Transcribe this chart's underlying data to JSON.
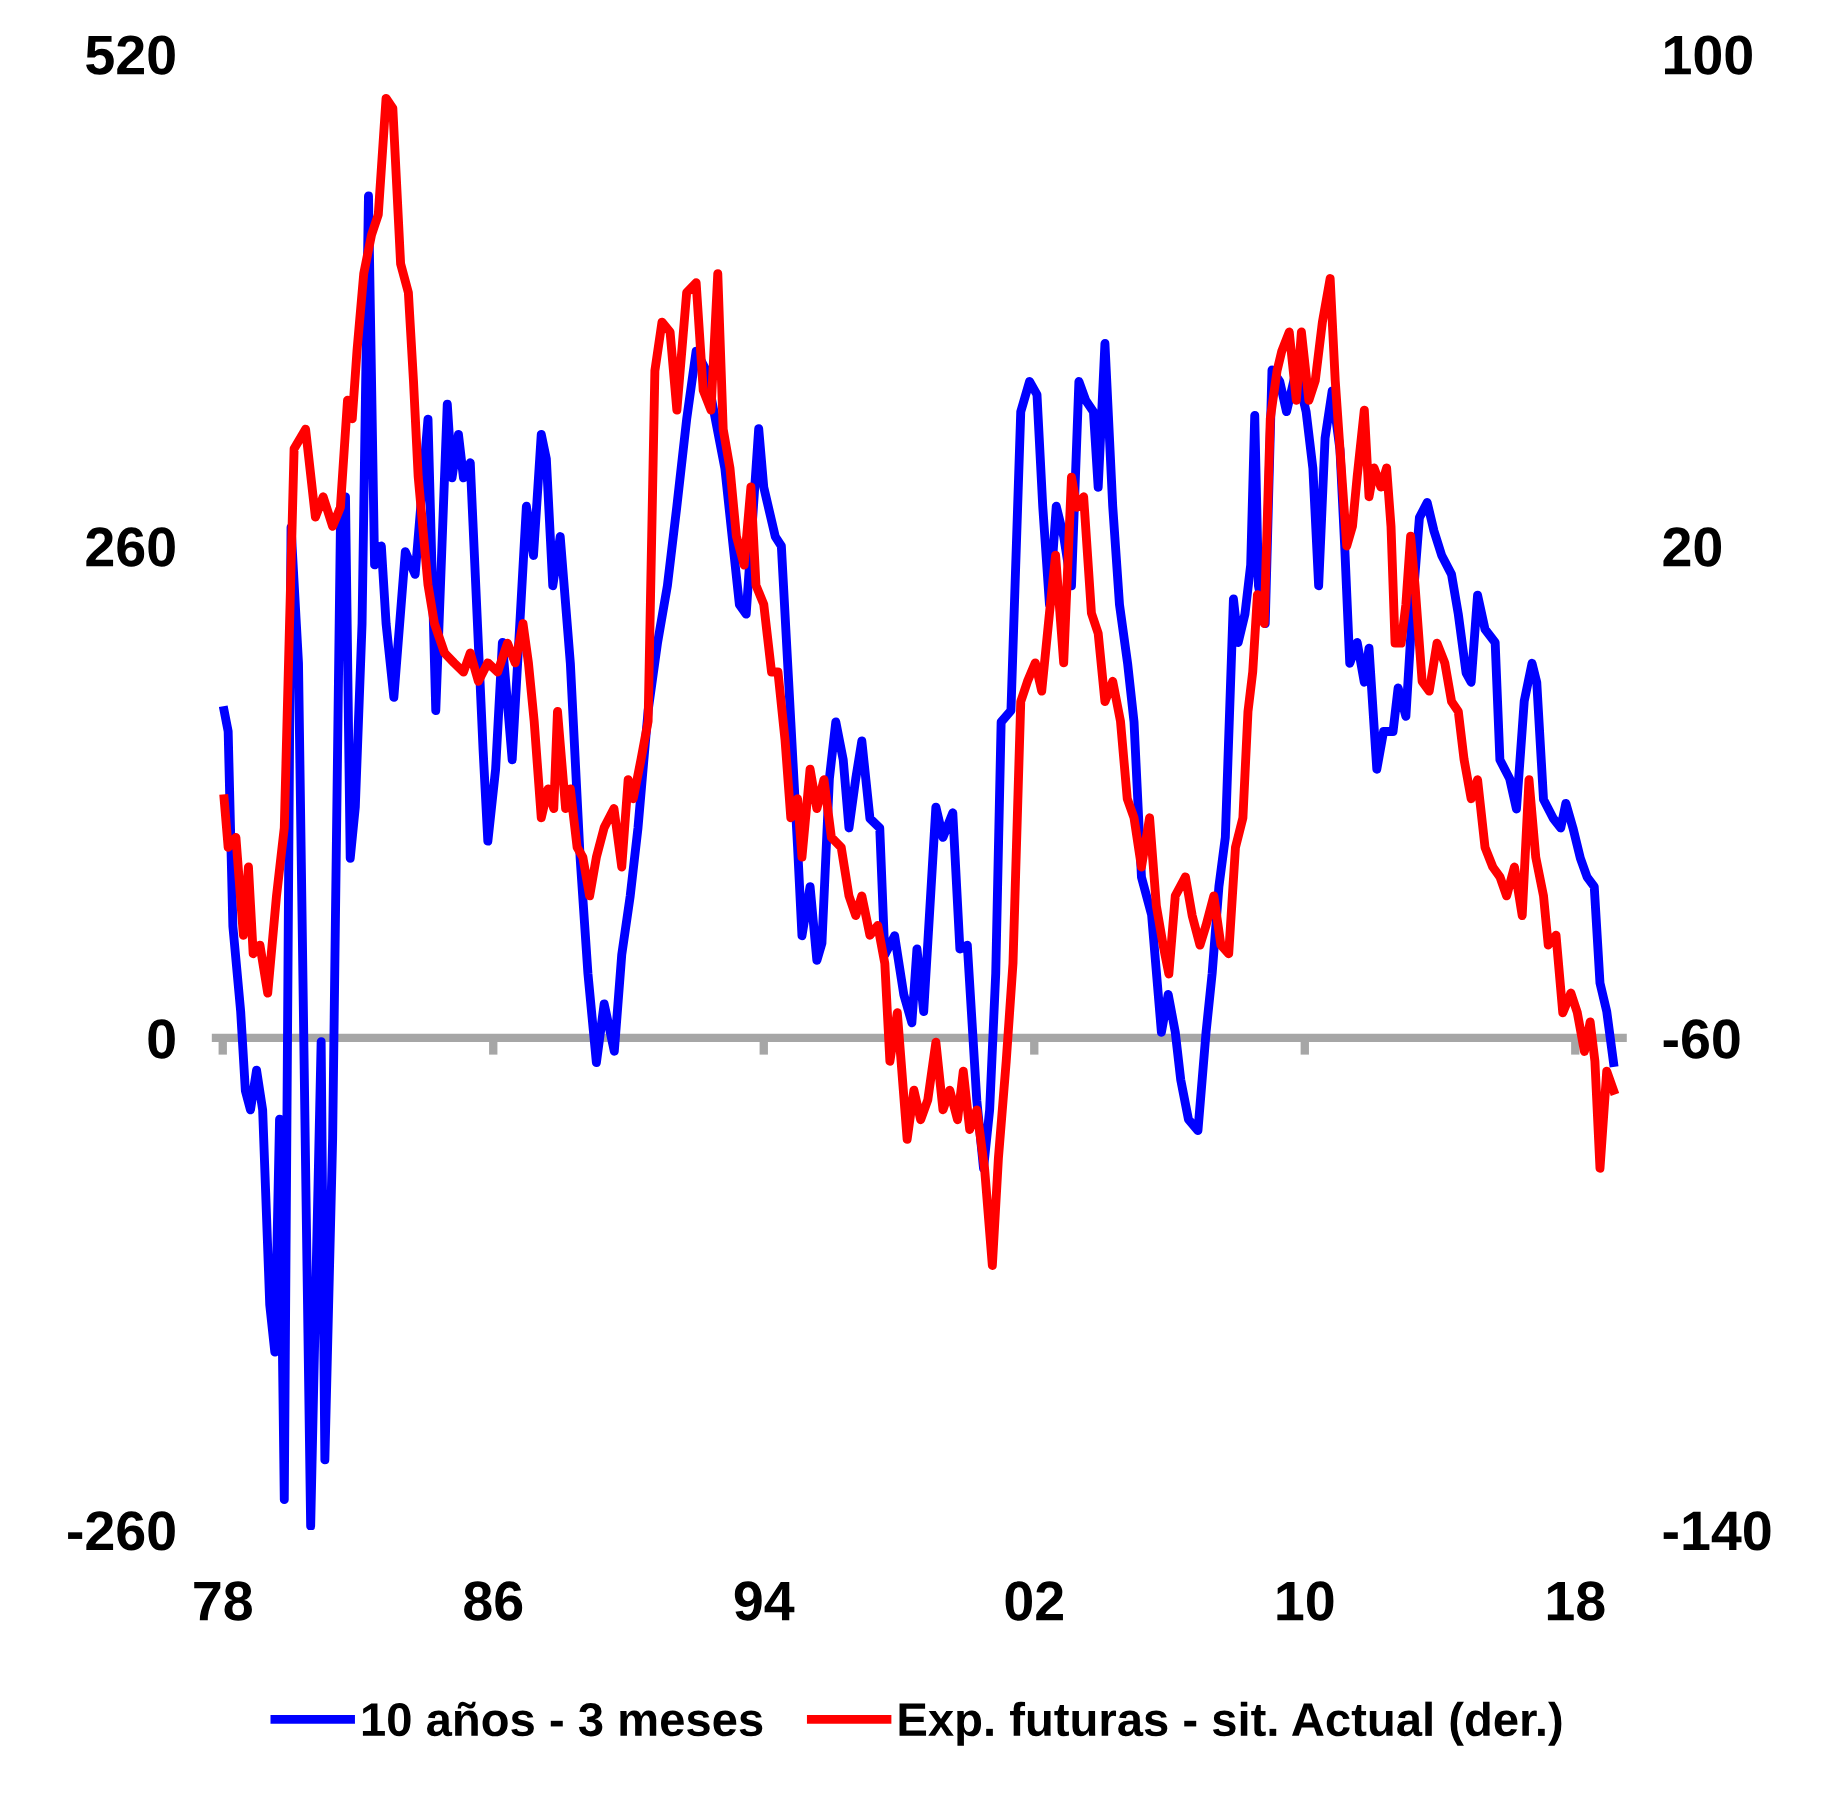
{
  "chart_data": {
    "type": "line",
    "xlim": [
      1977.8,
      2019.4
    ],
    "xticks": [
      {
        "value": 1978,
        "label": "78"
      },
      {
        "value": 1986,
        "label": "86"
      },
      {
        "value": 1994,
        "label": "94"
      },
      {
        "value": 2002,
        "label": "02"
      },
      {
        "value": 2010,
        "label": "10"
      },
      {
        "value": 2018,
        "label": "18"
      }
    ],
    "ylim": [
      -260,
      520
    ],
    "yticks": [
      -260,
      0,
      260,
      520
    ],
    "y2lim": [
      -140,
      100
    ],
    "y2ticks": [
      -140,
      -60,
      20,
      100
    ],
    "legend": "bottom",
    "series": [
      {
        "name": "10 años - 3 meses",
        "color": "#0000ff",
        "x": [
          1978.04,
          1978.16,
          1978.3,
          1978.53,
          1978.67,
          1978.82,
          1979.0,
          1979.18,
          1979.39,
          1979.54,
          1979.68,
          1979.82,
          1980.02,
          1980.24,
          1980.6,
          1980.91,
          1981.02,
          1981.25,
          1981.48,
          1981.63,
          1981.77,
          1981.92,
          1982.12,
          1982.31,
          1982.49,
          1982.69,
          1982.83,
          1983.06,
          1983.4,
          1983.69,
          1984.07,
          1984.3,
          1984.64,
          1984.78,
          1984.97,
          1985.12,
          1985.32,
          1985.7,
          1985.84,
          1986.07,
          1986.27,
          1986.56,
          1986.98,
          1987.19,
          1987.42,
          1987.57,
          1987.76,
          1987.98,
          1988.28,
          1988.57,
          1988.8,
          1989.05,
          1989.28,
          1989.58,
          1989.8,
          1990.05,
          1990.28,
          1990.58,
          1990.86,
          1991.15,
          1991.43,
          1991.72,
          1992.0,
          1992.29,
          1992.85,
          1993.28,
          1993.48,
          1993.85,
          1994.0,
          1994.34,
          1994.52,
          1994.8,
          1995.0,
          1995.13,
          1995.37,
          1995.57,
          1995.72,
          1995.94,
          1996.13,
          1996.35,
          1996.52,
          1996.72,
          1996.9,
          1997.14,
          1997.43,
          1997.58,
          1997.87,
          1998.14,
          1998.38,
          1998.53,
          1998.73,
          1999.09,
          1999.3,
          1999.59,
          1999.8,
          2000.02,
          2000.3,
          2000.5,
          2000.68,
          2000.86,
          2001.02,
          2001.31,
          2001.6,
          2001.86,
          2002.08,
          2002.25,
          2002.45,
          2002.65,
          2002.87,
          2003.1,
          2003.32,
          2003.52,
          2003.75,
          2003.89,
          2004.09,
          2004.32,
          2004.52,
          2004.76,
          2004.95,
          2005.17,
          2005.47,
          2005.76,
          2005.96,
          2006.17,
          2006.33,
          2006.56,
          2006.84,
          2007.08,
          2007.26,
          2007.46,
          2007.65,
          2007.89,
          2008.03,
          2008.23,
          2008.4,
          2008.52,
          2008.63,
          2008.83,
          2009.03,
          2009.26,
          2009.46,
          2009.75,
          2010.04,
          2010.24,
          2010.41,
          2010.6,
          2010.81,
          2011.04,
          2011.18,
          2011.33,
          2011.55,
          2011.76,
          2011.9,
          2012.13,
          2012.33,
          2012.61,
          2012.76,
          2012.99,
          2013.19,
          2013.39,
          2013.62,
          2013.82,
          2014.05,
          2014.34,
          2014.54,
          2014.77,
          2014.92,
          2015.11,
          2015.33,
          2015.63,
          2015.77,
          2016.06,
          2016.26,
          2016.49,
          2016.72,
          2016.86,
          2017.06,
          2017.35,
          2017.57,
          2017.72,
          2017.93,
          2018.15,
          2018.35,
          2018.56,
          2018.73,
          2018.93,
          2019.13
        ],
        "values": [
          173,
          162,
          59,
          14,
          -28,
          -38,
          -17,
          -38,
          -141,
          -166,
          -43,
          -244,
          270,
          198,
          -258,
          -2,
          -223,
          -53,
          270,
          286,
          95,
          122,
          219,
          445,
          250,
          260,
          219,
          180,
          257,
          245,
          327,
          173,
          335,
          296,
          319,
          296,
          304,
          152,
          104,
          142,
          209,
          147,
          281,
          255,
          319,
          306,
          239,
          265,
          198,
          95,
          34,
          -13,
          18,
          -7,
          44,
          75,
          111,
          173,
          209,
          239,
          281,
          327,
          363,
          353,
          301,
          229,
          224,
          322,
          291,
          265,
          260,
          167,
          101,
          54,
          80,
          41,
          50,
          137,
          167,
          147,
          111,
          137,
          157,
          116,
          111,
          44,
          54,
          23,
          8,
          47,
          14,
          122,
          106,
          119,
          47,
          49,
          -33,
          -69,
          -38,
          34,
          167,
          173,
          331,
          347,
          340,
          281,
          229,
          281,
          265,
          239,
          347,
          337,
          331,
          291,
          367,
          281,
          229,
          198,
          167,
          85,
          65,
          3,
          23,
          3,
          -22,
          -43,
          -49,
          3,
          34,
          80,
          106,
          232,
          209,
          224,
          250,
          329,
          239,
          219,
          353,
          347,
          331,
          353,
          331,
          301,
          239,
          317,
          342,
          311,
          260,
          198,
          209,
          188,
          206,
          142,
          162,
          162,
          185,
          170,
          229,
          275,
          283,
          268,
          255,
          245,
          224,
          193,
          188,
          234,
          216,
          209,
          147,
          137,
          121,
          178,
          198,
          188,
          126,
          116,
          111,
          124,
          111,
          95,
          85,
          80,
          29,
          14,
          -13
        ]
      },
      {
        "name": "Exp. futuras - sit. Actual (der.)",
        "color": "#ff0000",
        "axis": "y2",
        "x": [
          1978.04,
          1978.16,
          1978.39,
          1978.61,
          1978.76,
          1978.9,
          1979.1,
          1979.33,
          1979.59,
          1979.82,
          1980.11,
          1980.45,
          1980.74,
          1980.97,
          1981.25,
          1981.48,
          1981.69,
          1981.83,
          1981.97,
          1982.17,
          1982.4,
          1982.6,
          1982.83,
          1983.03,
          1983.26,
          1983.49,
          1983.64,
          1983.78,
          1984.07,
          1984.26,
          1984.56,
          1984.84,
          1985.12,
          1985.32,
          1985.56,
          1985.84,
          1986.13,
          1986.42,
          1986.65,
          1986.88,
          1987.04,
          1987.21,
          1987.42,
          1987.62,
          1987.79,
          1987.9,
          1988.14,
          1988.28,
          1988.48,
          1988.65,
          1988.85,
          1989.05,
          1989.28,
          1989.57,
          1989.8,
          1989.99,
          1990.14,
          1990.37,
          1990.58,
          1990.78,
          1990.99,
          1991.23,
          1991.43,
          1991.72,
          1992.0,
          1992.21,
          1992.44,
          1992.64,
          1992.8,
          1993.0,
          1993.19,
          1993.42,
          1993.62,
          1993.77,
          1994.0,
          1994.23,
          1994.42,
          1994.63,
          1994.8,
          1995.0,
          1995.13,
          1995.37,
          1995.57,
          1995.78,
          1996.0,
          1996.29,
          1996.52,
          1996.72,
          1996.9,
          1997.14,
          1997.37,
          1997.58,
          1997.73,
          1997.95,
          1998.24,
          1998.44,
          1998.64,
          1998.85,
          1999.09,
          1999.3,
          1999.5,
          1999.73,
          1999.9,
          2000.09,
          2000.3,
          2000.53,
          2000.76,
          2000.94,
          2001.17,
          2001.37,
          2001.6,
          2001.8,
          2002.03,
          2002.22,
          2002.45,
          2002.63,
          2002.87,
          2003.1,
          2003.26,
          2003.46,
          2003.69,
          2003.89,
          2004.09,
          2004.32,
          2004.55,
          2004.75,
          2004.95,
          2005.17,
          2005.41,
          2005.61,
          2005.81,
          2005.98,
          2006.17,
          2006.47,
          2006.67,
          2006.9,
          2007.08,
          2007.31,
          2007.52,
          2007.75,
          2007.95,
          2008.17,
          2008.32,
          2008.46,
          2008.6,
          2008.8,
          2008.98,
          2009.18,
          2009.32,
          2009.54,
          2009.75,
          2009.9,
          2010.12,
          2010.31,
          2010.52,
          2010.75,
          2010.9,
          2011.04,
          2011.24,
          2011.41,
          2011.55,
          2011.76,
          2011.9,
          2012.05,
          2012.25,
          2012.42,
          2012.55,
          2012.67,
          2012.85,
          2012.99,
          2013.13,
          2013.26,
          2013.47,
          2013.68,
          2013.91,
          2014.14,
          2014.34,
          2014.54,
          2014.71,
          2014.92,
          2015.11,
          2015.33,
          2015.56,
          2015.77,
          2015.97,
          2016.2,
          2016.43,
          2016.63,
          2016.83,
          2017.06,
          2017.2,
          2017.43,
          2017.63,
          2017.87,
          2018.06,
          2018.27,
          2018.44,
          2018.58,
          2018.73,
          2018.93,
          2019.13
        ],
        "values": [
          -21.1,
          -29.0,
          -27.4,
          -43.3,
          -32.2,
          -46.3,
          -44.9,
          -52.7,
          -36.9,
          -25.8,
          35.8,
          39.0,
          24.7,
          28.0,
          23.2,
          26.3,
          43.7,
          40.7,
          51.7,
          64.3,
          70.6,
          73.9,
          92.8,
          91.2,
          65.9,
          61.2,
          46.9,
          31.3,
          13.7,
          7.4,
          2.6,
          1.0,
          -0.5,
          2.6,
          -2.0,
          1.0,
          -0.5,
          4.2,
          1.0,
          7.4,
          1.0,
          -8.5,
          -24.2,
          -19.5,
          -22.7,
          -6.9,
          -22.7,
          -19.5,
          -29.0,
          -30.6,
          -36.9,
          -30.6,
          -25.8,
          -22.7,
          -32.2,
          -18.0,
          -21.1,
          -14.7,
          -8.5,
          48.5,
          56.4,
          54.8,
          42.1,
          61.2,
          62.8,
          45.3,
          42.1,
          64.3,
          39.0,
          32.7,
          21.6,
          16.9,
          29.6,
          13.6,
          10.5,
          -0.5,
          -0.5,
          -11.6,
          -24.2,
          -21.1,
          -30.6,
          -16.3,
          -22.7,
          -18.0,
          -27.4,
          -29.0,
          -36.9,
          -40.1,
          -36.9,
          -43.3,
          -41.7,
          -47.9,
          -63.8,
          -55.9,
          -76.5,
          -68.5,
          -73.3,
          -70.1,
          -60.7,
          -71.7,
          -68.5,
          -73.3,
          -65.4,
          -74.9,
          -71.7,
          -81.2,
          -97.0,
          -79.5,
          -63.8,
          -47.9,
          -5.3,
          -2.0,
          1.0,
          -3.6,
          9.1,
          18.5,
          1.0,
          31.2,
          26.3,
          28.0,
          9.1,
          5.8,
          -5.3,
          -2.0,
          -8.5,
          -21.1,
          -24.2,
          -32.2,
          -24.2,
          -38.5,
          -44.9,
          -49.6,
          -36.9,
          -33.8,
          -40.1,
          -44.9,
          -41.7,
          -36.9,
          -44.9,
          -46.3,
          -29.0,
          -24.2,
          -6.9,
          -0.5,
          12.1,
          7.4,
          40.7,
          48.5,
          51.7,
          54.8,
          43.7,
          54.8,
          43.7,
          46.9,
          56.4,
          63.5,
          46.9,
          35.8,
          20.0,
          23.2,
          31.3,
          42.1,
          28.0,
          32.7,
          29.6,
          32.7,
          23.2,
          4.2,
          4.2,
          10.5,
          21.6,
          13.6,
          -2.0,
          -3.6,
          4.2,
          1.0,
          -5.3,
          -6.9,
          -14.7,
          -21.1,
          -18.0,
          -29.0,
          -32.2,
          -33.8,
          -36.9,
          -32.2,
          -40.1,
          -18.0,
          -30.6,
          -36.9,
          -44.9,
          -43.3,
          -55.9,
          -52.7,
          -55.9,
          -62.2,
          -57.4,
          -63.8,
          -81.2,
          -65.4,
          -68.5
        ]
      }
    ]
  }
}
